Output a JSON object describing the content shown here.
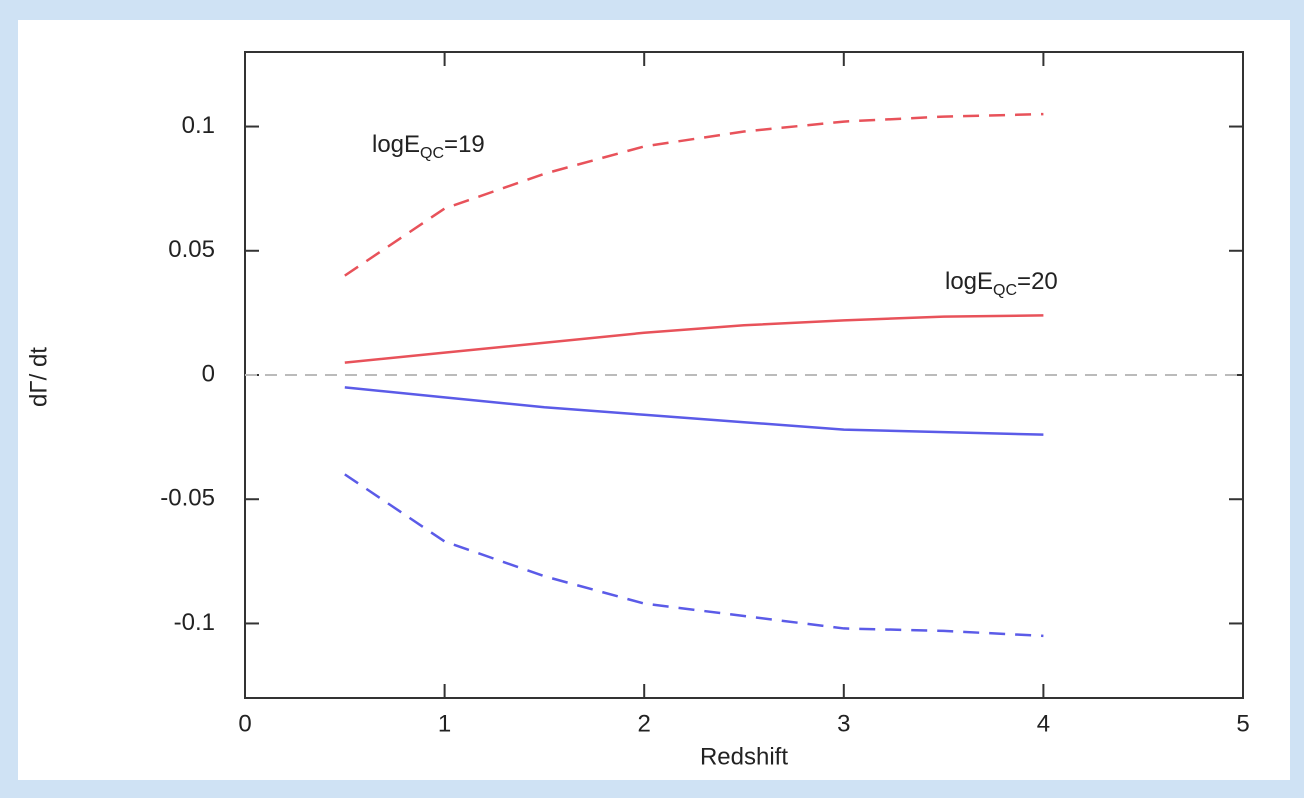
{
  "chart_data": {
    "type": "line",
    "x_label": "Redshift",
    "y_label": "dΓ/ dt",
    "xlim": [
      0,
      5
    ],
    "ylim": [
      -0.13,
      0.13
    ],
    "xticks": [
      0,
      1,
      2,
      3,
      4,
      5
    ],
    "yticks": [
      -0.1,
      -0.05,
      0,
      0.05,
      0.1
    ],
    "reference_line": 0,
    "x": [
      0.5,
      1,
      1.5,
      2,
      2.5,
      3,
      3.5,
      4
    ],
    "series": [
      {
        "color": "#e8525a",
        "dashed": true,
        "values": [
          0.04,
          0.067,
          0.081,
          0.092,
          0.098,
          0.102,
          0.104,
          0.105
        ]
      },
      {
        "color": "#e8525a",
        "dashed": false,
        "values": [
          0.005,
          0.009,
          0.013,
          0.017,
          0.02,
          0.022,
          0.0235,
          0.024
        ]
      },
      {
        "color": "#5b5be8",
        "dashed": false,
        "values": [
          -0.005,
          -0.009,
          -0.013,
          -0.016,
          -0.019,
          -0.022,
          -0.023,
          -0.024
        ]
      },
      {
        "color": "#5b5be8",
        "dashed": true,
        "values": [
          -0.04,
          -0.067,
          -0.081,
          -0.092,
          -0.097,
          -0.102,
          -0.103,
          -0.105
        ]
      }
    ],
    "annotations": [
      {
        "text": "logE",
        "sub": "QC",
        "rest": "=19"
      },
      {
        "text": "logE",
        "sub": "QC",
        "rest": "=20"
      }
    ]
  }
}
